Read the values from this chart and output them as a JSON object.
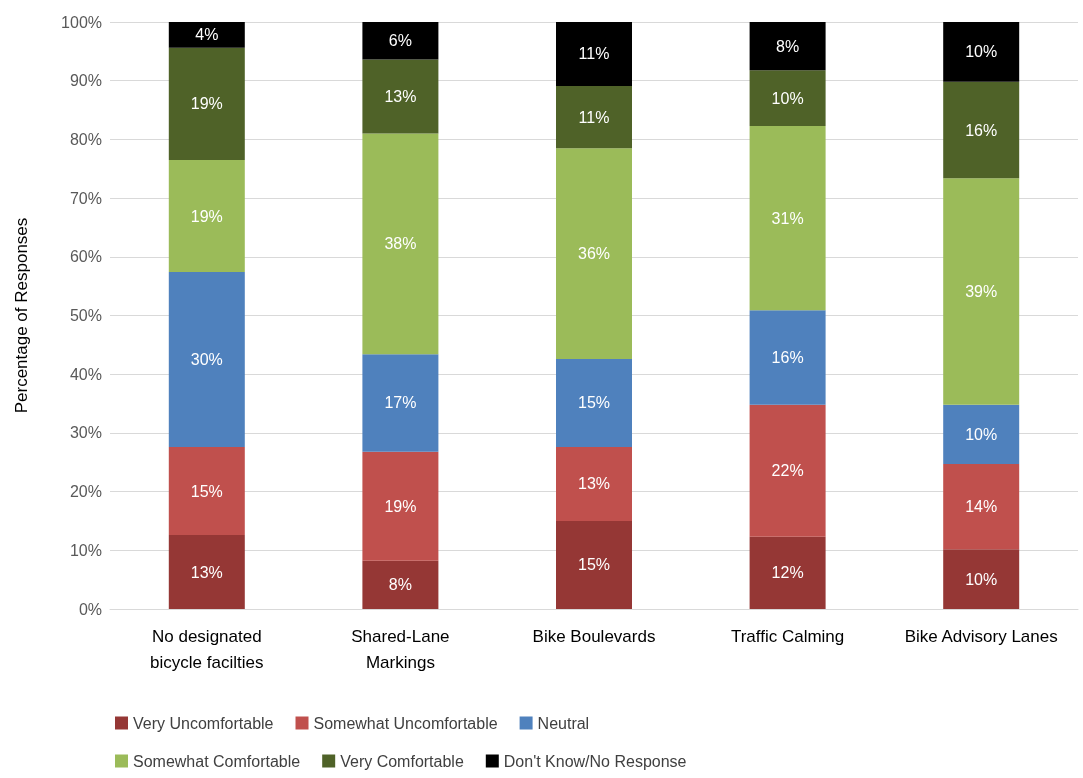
{
  "chart_data": {
    "type": "bar",
    "stacked": true,
    "ylabel": "Percentage of Responses",
    "categories": [
      "No designated\nbicycle facilties",
      "Shared-Lane\nMarkings",
      "Bike Boulevards",
      "Traffic Calming",
      "Bike Advisory Lanes"
    ],
    "series": [
      {
        "name": "Very Uncomfortable",
        "color": "#953735",
        "values": [
          12.6,
          8.2,
          15,
          12.3,
          10.2
        ],
        "value_labels": [
          "13%",
          "8%",
          "15%",
          "12%",
          "10%"
        ]
      },
      {
        "name": "Somewhat Uncomfortable",
        "color": "#c0504d",
        "values": [
          15,
          18.6,
          12.6,
          22.5,
          14.5
        ],
        "value_labels": [
          "15%",
          "19%",
          "13%",
          "22%",
          "14%"
        ]
      },
      {
        "name": "Neutral",
        "color": "#4f81bd",
        "values": [
          29.8,
          16.6,
          15,
          16.1,
          10.1
        ],
        "value_labels": [
          "30%",
          "17%",
          "15%",
          "16%",
          "10%"
        ]
      },
      {
        "name": "Somewhat Comfortable",
        "color": "#9bbb59",
        "values": [
          19.1,
          37.6,
          35.9,
          31.4,
          38.6
        ],
        "value_labels": [
          "19%",
          "38%",
          "36%",
          "31%",
          "39%"
        ]
      },
      {
        "name": "Very Comfortable",
        "color": "#4f6228",
        "values": [
          19.1,
          12.6,
          10.6,
          9.5,
          16.4
        ],
        "value_labels": [
          "19%",
          "13%",
          "11%",
          "10%",
          "16%"
        ]
      },
      {
        "name": "Don't Know/No Response",
        "color": "#000000",
        "values": [
          4.4,
          6.4,
          10.9,
          8.2,
          10.2
        ],
        "value_labels": [
          "4%",
          "6%",
          "11%",
          "8%",
          "10%"
        ]
      }
    ],
    "ylim": [
      0,
      100
    ],
    "yticks": [
      {
        "value": 0,
        "label": "0%"
      },
      {
        "value": 10,
        "label": "10%"
      },
      {
        "value": 20,
        "label": "20%"
      },
      {
        "value": 30,
        "label": "30%"
      },
      {
        "value": 40,
        "label": "40%"
      },
      {
        "value": 50,
        "label": "50%"
      },
      {
        "value": 60,
        "label": "60%"
      },
      {
        "value": 70,
        "label": "70%"
      },
      {
        "value": 80,
        "label": "80%"
      },
      {
        "value": 90,
        "label": "90%"
      },
      {
        "value": 100,
        "label": "100%"
      }
    ],
    "grid": "y",
    "legend": "bottom"
  }
}
